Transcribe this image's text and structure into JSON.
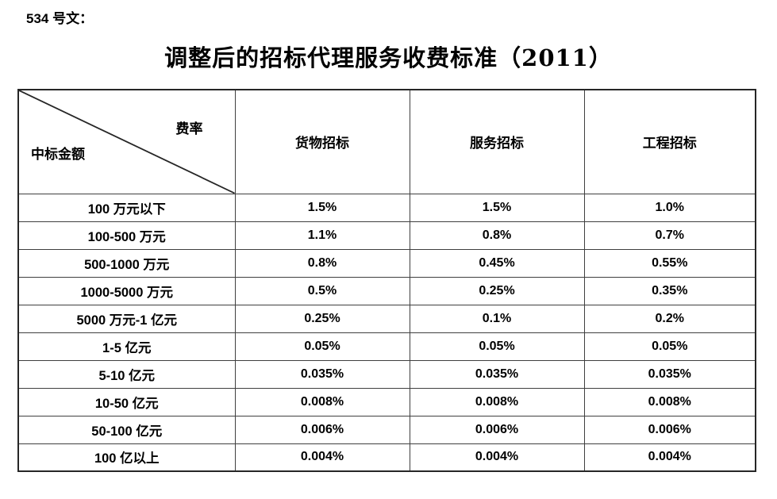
{
  "doc": {
    "ref_label": "534 号文：",
    "title": "调整后的招标代理服务收费标准（2011）"
  },
  "table": {
    "corner_top_right": "费率",
    "corner_bottom_left": "中标金额",
    "columns": [
      "货物招标",
      "服务招标",
      "工程招标"
    ],
    "rows": [
      {
        "range": "100 万元以下",
        "values": [
          "1.5%",
          "1.5%",
          "1.0%"
        ]
      },
      {
        "range": "100-500 万元",
        "values": [
          "1.1%",
          "0.8%",
          "0.7%"
        ]
      },
      {
        "range": "500-1000 万元",
        "values": [
          "0.8%",
          "0.45%",
          "0.55%"
        ]
      },
      {
        "range": "1000-5000 万元",
        "values": [
          "0.5%",
          "0.25%",
          "0.35%"
        ]
      },
      {
        "range": "5000 万元-1 亿元",
        "values": [
          "0.25%",
          "0.1%",
          "0.2%"
        ]
      },
      {
        "range": "1-5 亿元",
        "values": [
          "0.05%",
          "0.05%",
          "0.05%"
        ]
      },
      {
        "range": "5-10 亿元",
        "values": [
          "0.035%",
          "0.035%",
          "0.035%"
        ]
      },
      {
        "range": "10-50 亿元",
        "values": [
          "0.008%",
          "0.008%",
          "0.008%"
        ]
      },
      {
        "range": "50-100 亿元",
        "values": [
          "0.006%",
          "0.006%",
          "0.006%"
        ]
      },
      {
        "range": "100 亿以上",
        "values": [
          "0.004%",
          "0.004%",
          "0.004%"
        ]
      }
    ],
    "colors": {
      "text": "#000000",
      "border_outer": "#262626",
      "border_inner": "#3f3f3f",
      "background": "#ffffff"
    }
  }
}
